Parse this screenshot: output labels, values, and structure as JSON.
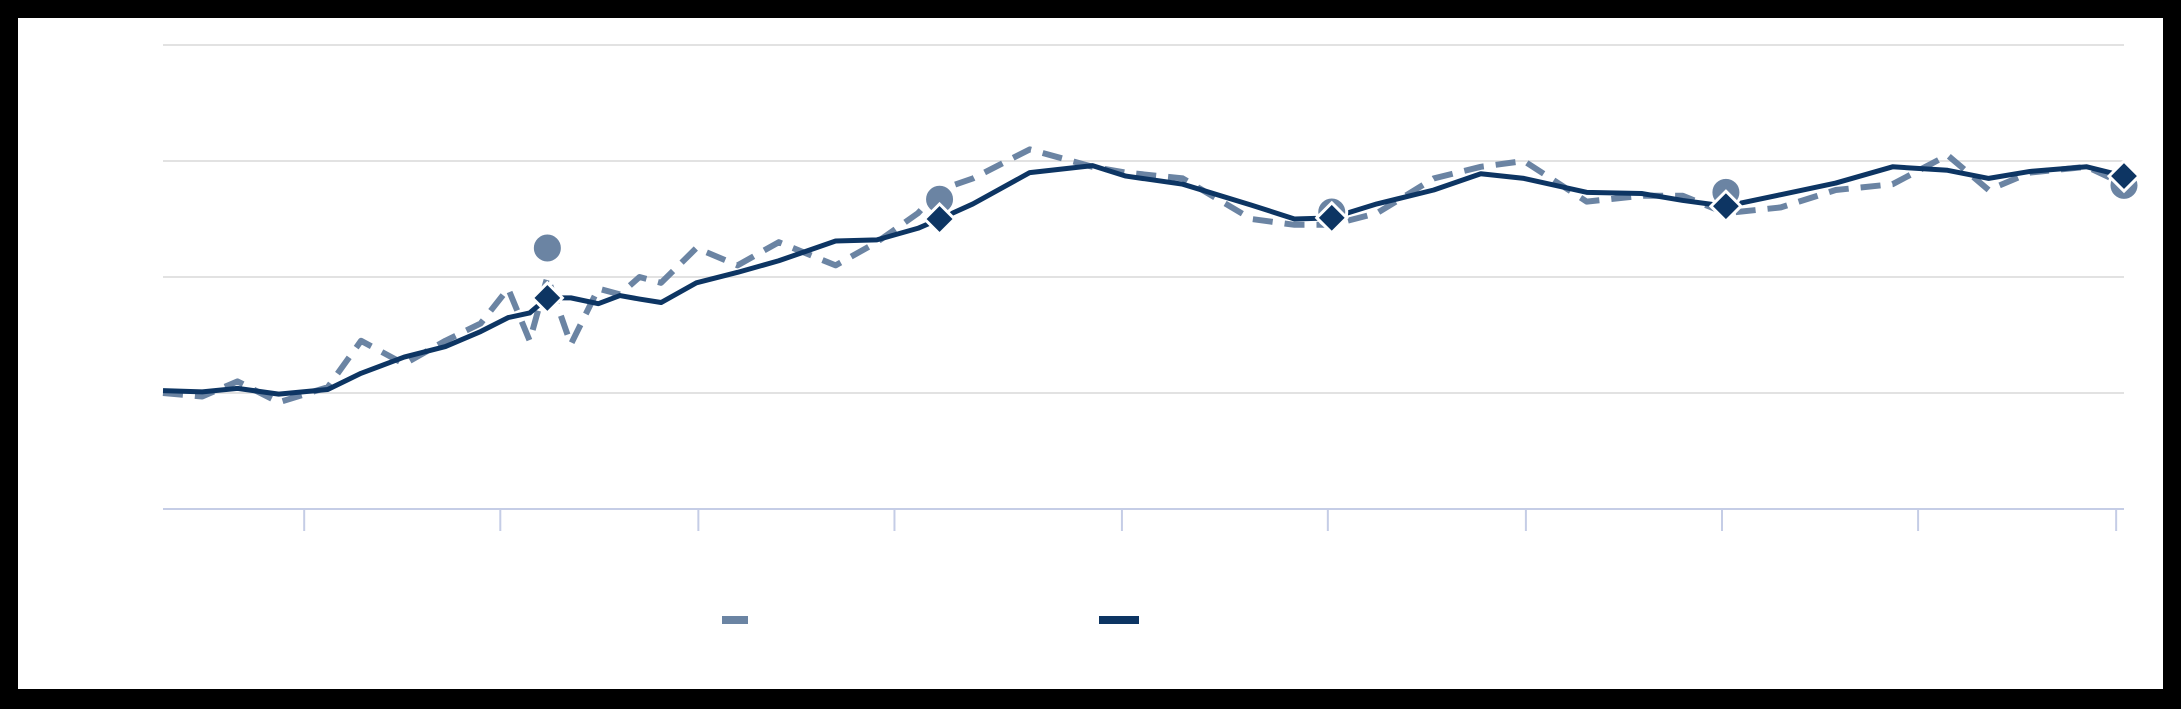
{
  "chart_data": {
    "type": "line",
    "x": [
      0,
      2.0,
      3.8,
      5.9,
      8.4,
      10.1,
      12.3,
      14.4,
      16.2,
      17.6,
      18.7,
      19.6,
      20.8,
      22.2,
      23.3,
      24.3,
      25.4,
      27.2,
      29.3,
      31.4,
      34.3,
      36.4,
      38.5,
      39.6,
      41.3,
      44.2,
      47.4,
      49.1,
      52.0,
      55.5,
      57.7,
      59.6,
      61.9,
      64.8,
      67.2,
      69.4,
      72.6,
      75.4,
      77.5,
      79.7,
      82.5,
      85.3,
      88.2,
      91.0,
      93.1,
      95.2,
      98.1,
      100
    ],
    "series": [
      {
        "color": "#6b84a3",
        "dashed": true,
        "values": [
          1.0,
          0.97,
          1.1,
          0.92,
          1.05,
          1.45,
          1.25,
          1.45,
          1.6,
          1.9,
          1.45,
          2.0,
          1.42,
          1.9,
          1.85,
          2.0,
          1.95,
          2.25,
          2.1,
          2.3,
          2.1,
          2.3,
          2.55,
          2.75,
          2.85,
          3.1,
          2.95,
          2.9,
          2.85,
          2.5,
          2.45,
          2.45,
          2.55,
          2.85,
          2.95,
          3.0,
          2.65,
          2.7,
          2.7,
          2.55,
          2.6,
          2.75,
          2.8,
          3.05,
          2.75,
          2.9,
          2.95,
          2.8
        ],
        "marker": "circle",
        "marker_x": [
          19.6,
          39.6,
          59.6,
          79.7,
          100
        ],
        "marker_values": [
          2.25,
          2.67,
          2.56,
          2.73,
          2.79
        ]
      },
      {
        "color": "#0d3563",
        "dashed": false,
        "values": [
          1.02,
          1.01,
          1.04,
          0.99,
          1.03,
          1.17,
          1.31,
          1.4,
          1.53,
          1.65,
          1.69,
          1.82,
          1.82,
          1.77,
          1.84,
          1.81,
          1.78,
          1.95,
          2.04,
          2.14,
          2.31,
          2.32,
          2.42,
          2.5,
          2.63,
          2.9,
          2.96,
          2.87,
          2.8,
          2.62,
          2.5,
          2.51,
          2.63,
          2.75,
          2.89,
          2.85,
          2.73,
          2.72,
          2.66,
          2.61,
          2.71,
          2.81,
          2.95,
          2.92,
          2.85,
          2.91,
          2.95,
          2.87
        ],
        "marker": "diamond",
        "marker_x": [
          19.6,
          39.6,
          59.6,
          79.7,
          100
        ],
        "marker_values": [
          1.82,
          2.5,
          2.51,
          2.61,
          2.87
        ]
      }
    ],
    "xlim": [
      0,
      100
    ],
    "xticks": [
      7.2,
      17.2,
      27.3,
      37.3,
      48.9,
      59.4,
      69.5,
      79.5,
      89.5,
      99.6
    ],
    "ylim": [
      0,
      4
    ],
    "yticks": [
      1,
      2,
      3,
      4
    ],
    "grid": true
  }
}
